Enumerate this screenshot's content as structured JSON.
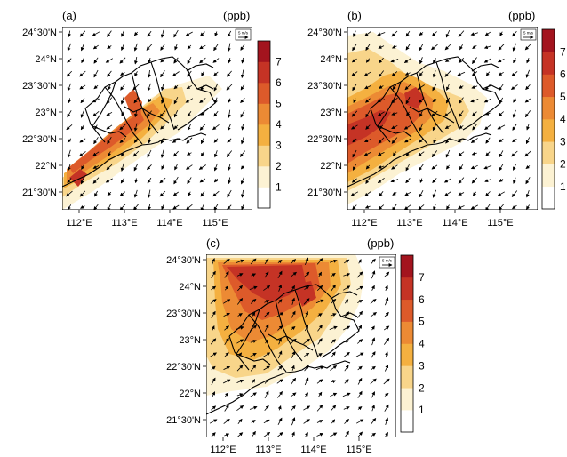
{
  "panels": [
    {
      "id": "a",
      "label": "(a)",
      "unit": "(ppb)",
      "wind_ref": "5 m/s",
      "wind_dir_deg": 235
    },
    {
      "id": "b",
      "label": "(b)",
      "unit": "(ppb)",
      "wind_ref": "5 m/s",
      "wind_dir_deg": 225
    },
    {
      "id": "c",
      "label": "(c)",
      "unit": "(ppb)",
      "wind_ref": "5 m/s",
      "wind_dir_deg": 45
    }
  ],
  "lat_ticks": [
    "24°30'N",
    "24°N",
    "23°30'N",
    "23°N",
    "22°30'N",
    "22°N",
    "21°30'N"
  ],
  "lon_ticks": [
    "112°E",
    "113°E",
    "114°E",
    "115°E"
  ],
  "colorbar": {
    "labels": [
      "1",
      "2",
      "3",
      "4",
      "5",
      "6",
      "7"
    ],
    "colors": [
      "#ffffff",
      "#fcf2d3",
      "#f8d58a",
      "#f4b040",
      "#ec8a34",
      "#dd5a2a",
      "#c53325",
      "#a3141e"
    ]
  },
  "colors": {
    "land_fill": "#ffffff",
    "boundary": "#000000",
    "vector": "#000000"
  }
}
